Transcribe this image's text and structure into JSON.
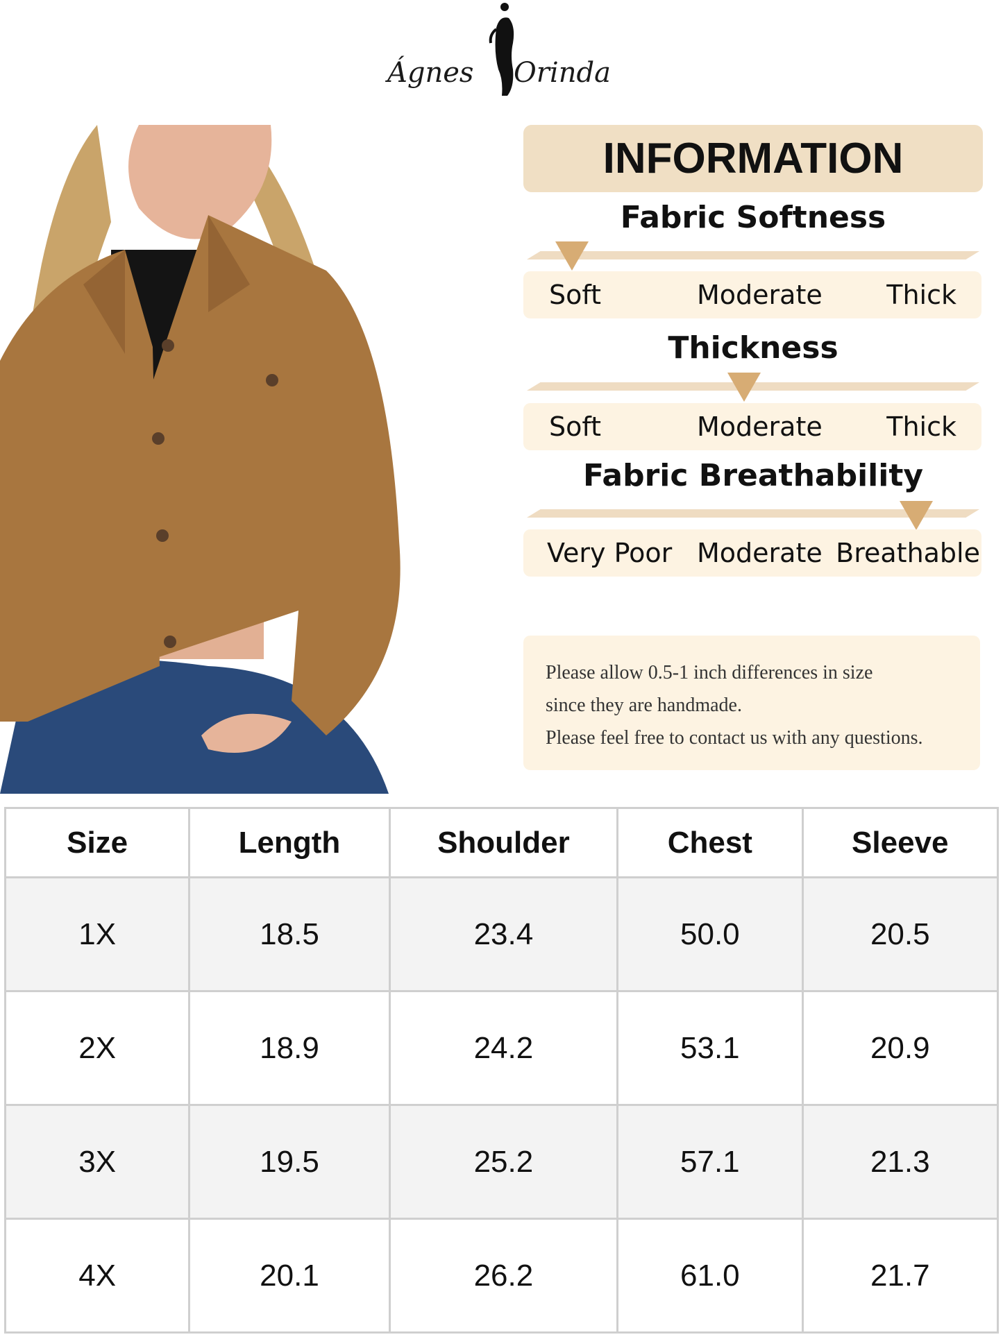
{
  "brand": {
    "left": "Ágnes",
    "right": "Orinda"
  },
  "info": {
    "title": "INFORMATION",
    "scales": [
      {
        "title": "Fabric Softness",
        "labels": [
          "Soft",
          "Moderate",
          "Thick"
        ],
        "level": 0.1
      },
      {
        "title": "Thickness",
        "labels": [
          "Soft",
          "Moderate",
          "Thick"
        ],
        "level": 0.48
      },
      {
        "title": "Fabric Breathability",
        "labels": [
          "Very Poor",
          "Moderate",
          "Breathable"
        ],
        "level": 0.86
      }
    ],
    "note": [
      "Please allow 0.5-1 inch differences in size",
      "since they are handmade.",
      "Please feel free to contact us with any questions."
    ]
  },
  "size_table": {
    "headers": [
      "Size",
      "Length",
      "Shoulder",
      "Chest",
      "Sleeve"
    ],
    "rows": [
      [
        "1X",
        "18.5",
        "23.4",
        "50.0",
        "20.5"
      ],
      [
        "2X",
        "18.9",
        "24.2",
        "53.1",
        "20.9"
      ],
      [
        "3X",
        "19.5",
        "25.2",
        "57.1",
        "21.3"
      ],
      [
        "4X",
        "20.1",
        "26.2",
        "61.0",
        "21.7"
      ]
    ]
  },
  "colors": {
    "accent": "#d7ac74",
    "header_bg": "#f0dfc4",
    "box_bg": "#fdf3e2",
    "jacket": "#a8763f"
  }
}
